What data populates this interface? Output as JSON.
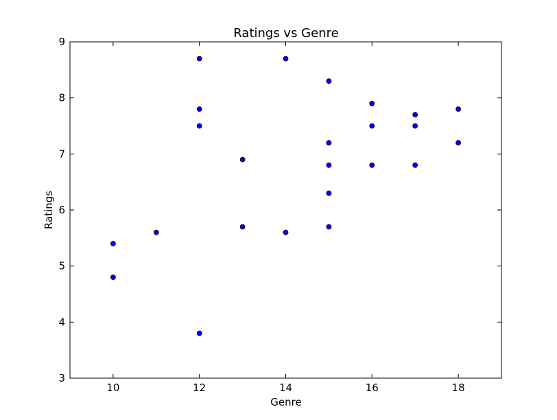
{
  "chart_data": {
    "type": "scatter",
    "title": "Ratings vs Genre",
    "xlabel": "Genre",
    "ylabel": "Ratings",
    "xlim": [
      9,
      19
    ],
    "ylim": [
      3,
      9
    ],
    "xticks": [
      10,
      12,
      14,
      16,
      18
    ],
    "yticks": [
      3,
      4,
      5,
      6,
      7,
      8,
      9
    ],
    "grid": false,
    "marker_color": "#0000ff",
    "points": [
      {
        "x": 10,
        "y": 5.4
      },
      {
        "x": 10,
        "y": 4.8
      },
      {
        "x": 11,
        "y": 5.6
      },
      {
        "x": 12,
        "y": 8.7
      },
      {
        "x": 12,
        "y": 7.8
      },
      {
        "x": 12,
        "y": 7.5
      },
      {
        "x": 12,
        "y": 3.8
      },
      {
        "x": 13,
        "y": 6.9
      },
      {
        "x": 13,
        "y": 5.7
      },
      {
        "x": 14,
        "y": 8.7
      },
      {
        "x": 14,
        "y": 5.6
      },
      {
        "x": 15,
        "y": 8.3
      },
      {
        "x": 15,
        "y": 7.2
      },
      {
        "x": 15,
        "y": 6.8
      },
      {
        "x": 15,
        "y": 6.3
      },
      {
        "x": 15,
        "y": 5.7
      },
      {
        "x": 16,
        "y": 7.9
      },
      {
        "x": 16,
        "y": 7.5
      },
      {
        "x": 16,
        "y": 6.8
      },
      {
        "x": 17,
        "y": 7.7
      },
      {
        "x": 17,
        "y": 7.5
      },
      {
        "x": 17,
        "y": 6.8
      },
      {
        "x": 18,
        "y": 7.8
      },
      {
        "x": 18,
        "y": 7.2
      }
    ]
  }
}
